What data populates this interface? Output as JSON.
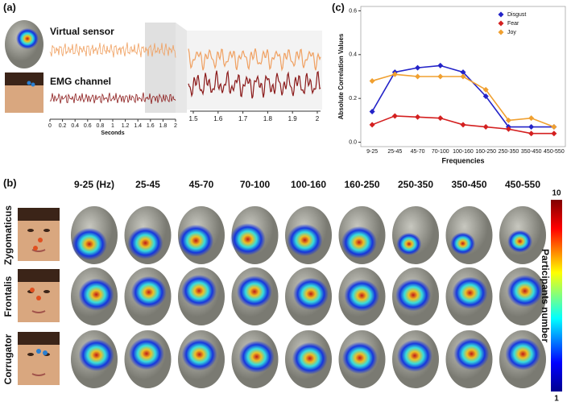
{
  "panel_a": {
    "label": "(a)",
    "virtual_sensor": "Virtual sensor",
    "emg_channel": "EMG channel",
    "xlim": [
      0,
      2
    ],
    "xticks": [
      0,
      0.2,
      0.4,
      0.6,
      0.8,
      1,
      1.2,
      1.4,
      1.6,
      1.8,
      2
    ],
    "xlabel": "Seconds",
    "zoom_xlim": [
      1.5,
      2
    ],
    "zoom_xticks": [
      1.5,
      1.6,
      1.7,
      1.8,
      1.9,
      2
    ]
  },
  "chart_data": {
    "type": "line",
    "label": "(c)",
    "y_label": "Absolute Correlation Values",
    "x_label": "Frequencies",
    "categories": [
      "9-25",
      "25-45",
      "45-70",
      "70-100",
      "100-160",
      "160-250",
      "250-350",
      "350-450",
      "450-550"
    ],
    "series": [
      {
        "name": "Disgust",
        "color": "#2323c8",
        "values": [
          0.14,
          0.32,
          0.34,
          0.35,
          0.32,
          0.21,
          0.07,
          0.07,
          0.07
        ]
      },
      {
        "name": "Fear",
        "color": "#d42020",
        "values": [
          0.08,
          0.12,
          0.115,
          0.11,
          0.08,
          0.07,
          0.06,
          0.04,
          0.04
        ]
      },
      {
        "name": "Joy",
        "color": "#f0a030",
        "values": [
          0.28,
          0.31,
          0.3,
          0.3,
          0.3,
          0.24,
          0.1,
          0.11,
          0.07
        ]
      }
    ],
    "ylim": [
      -0.02,
      0.62
    ],
    "yticks": [
      {
        "value": 0,
        "label": "0.0"
      },
      0.2,
      0.4,
      0.6
    ],
    "legend": "upper right"
  },
  "panel_b": {
    "label": "(b)",
    "columns": [
      "9-25 (Hz)",
      "25-45",
      "45-70",
      "70-100",
      "100-160",
      "160-250",
      "250-350",
      "350-450",
      "450-550"
    ],
    "rows": [
      "Zygomaticus",
      "Frontalis",
      "Corrugator"
    ],
    "colorbar": {
      "ticks": [
        1,
        10
      ],
      "label": "Participants number"
    }
  }
}
